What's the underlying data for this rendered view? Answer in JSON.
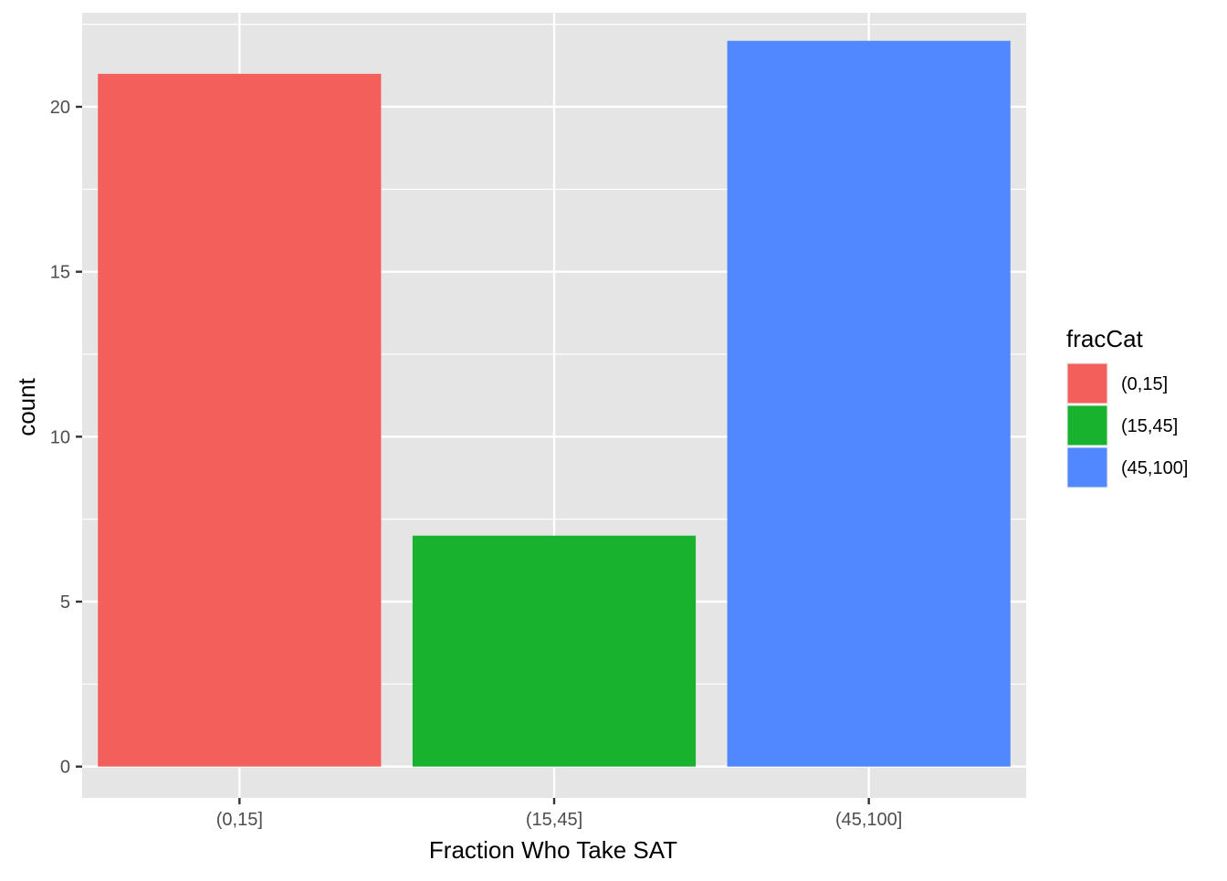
{
  "chart_data": {
    "type": "bar",
    "categories": [
      "(0,15]",
      "(15,45]",
      "(45,100]"
    ],
    "values": [
      21,
      7,
      22
    ],
    "colors": [
      "#F3605C",
      "#19B22F",
      "#5187FF"
    ],
    "xlabel": "Fraction Who Take SAT",
    "ylabel": "count",
    "ylim": [
      -0.95,
      22.85
    ],
    "yticks": [
      0,
      5,
      10,
      15,
      20
    ],
    "ytick_labels": [
      "0",
      "5",
      "10",
      "15",
      "20"
    ],
    "grid": true,
    "panel_background": "#E5E5E5",
    "grid_color": "#FFFFFF",
    "legend": {
      "title": "fracCat",
      "position": "right",
      "labels": [
        "(0,15]",
        "(15,45]",
        "(45,100]"
      ]
    }
  }
}
